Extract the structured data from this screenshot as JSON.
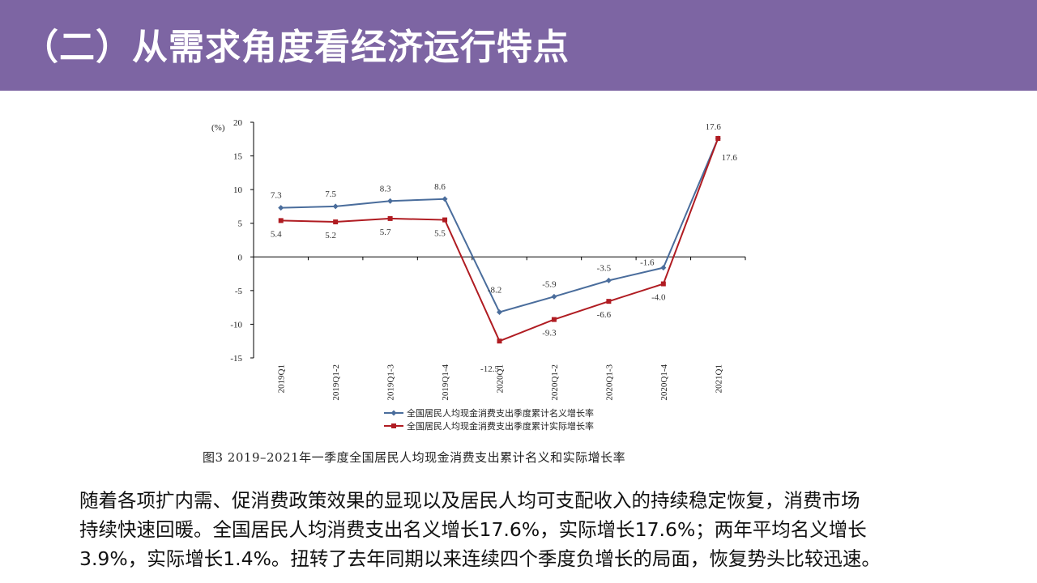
{
  "header": {
    "title": "（二）从需求角度看经济运行特点",
    "bg_color": "#7d65a3"
  },
  "chart_data": {
    "type": "line",
    "unit_label": "(%)",
    "categories": [
      "2019Q1",
      "2019Q1-2",
      "2019Q1-3",
      "2019Q1-4",
      "2020Q1",
      "2020Q1-2",
      "2020Q1-3",
      "2020Q1-4",
      "2021Q1"
    ],
    "series": [
      {
        "name": "全国居民人均现金消费支出季度累计名义增长率",
        "color": "#4a6d9c",
        "marker": "diamond",
        "values": [
          7.3,
          7.5,
          8.3,
          8.6,
          -8.2,
          -5.9,
          -3.5,
          -1.6,
          17.6
        ],
        "labels": [
          "7.3",
          "7.5",
          "8.3",
          "8.6",
          "-8.2",
          "-5.9",
          "-3.5",
          "-1.6",
          "17.6"
        ]
      },
      {
        "name": "全国居民人均现金消费支出季度累计实际增长率",
        "color": "#b01c22",
        "marker": "square",
        "values": [
          5.4,
          5.2,
          5.7,
          5.5,
          -12.5,
          -9.3,
          -6.6,
          -4.0,
          17.6
        ],
        "labels": [
          "5.4",
          "5.2",
          "5.7",
          "5.5",
          "-12.5",
          "-9.3",
          "-6.6",
          "-4.0",
          "17.6"
        ]
      }
    ],
    "yticks": [
      20,
      15,
      10,
      5,
      0,
      -5,
      -10,
      -15
    ],
    "ylim": [
      -15,
      20
    ],
    "grid": false,
    "legend_position": "bottom"
  },
  "caption": "图3 2019–2021年一季度全国居民人均现金消费支出累计名义和实际增长率",
  "body_lines": [
    "随着各项扩内需、促消费政策效果的显现以及居民人均可支配收入的持续稳定恢复，消费市场",
    "持续快速回暖。全国居民人均消费支出名义增长17.6%，实际增长17.6%；两年平均名义增长",
    "3.9%，实际增长1.4%。扭转了去年同期以来连续四个季度负增长的局面，恢复势头比较迅速。"
  ]
}
